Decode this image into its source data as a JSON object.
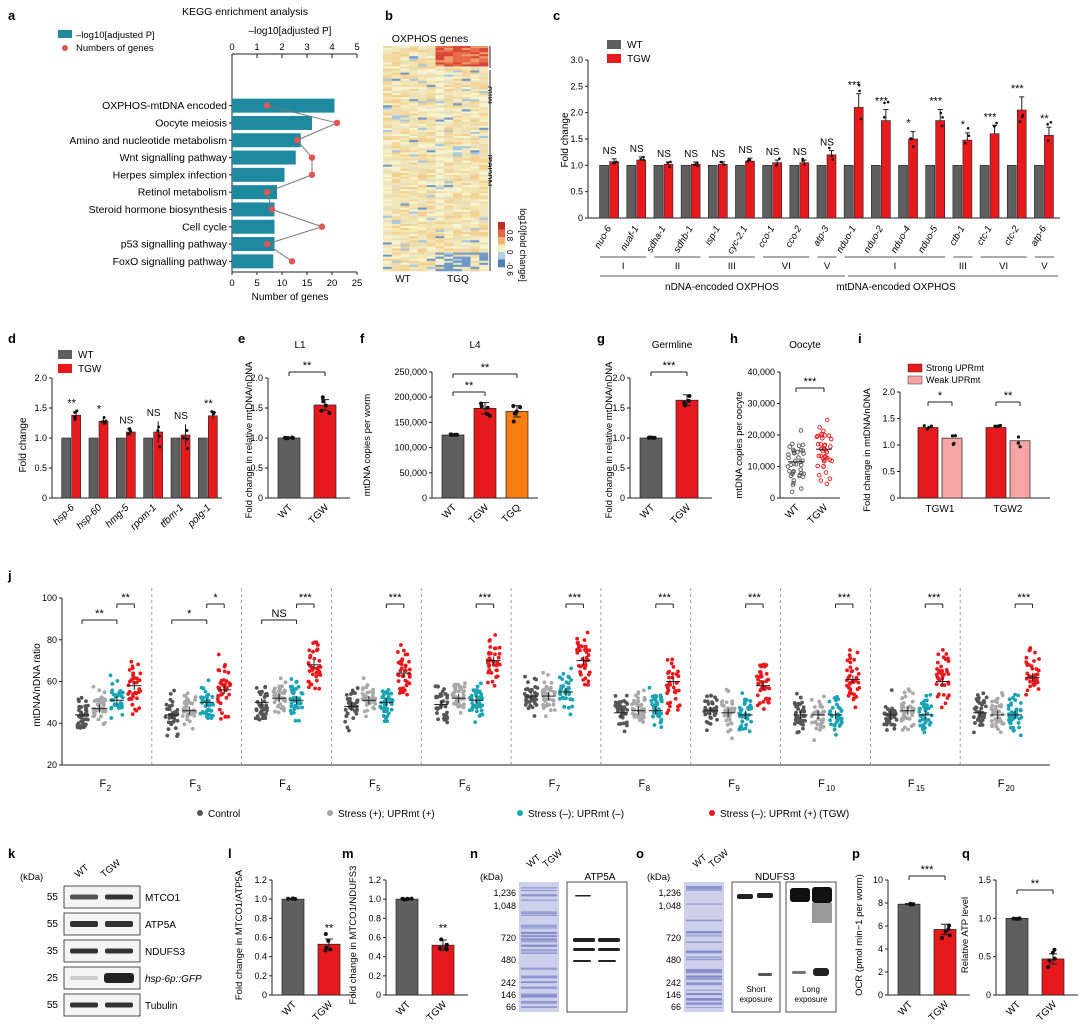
{
  "panels": {
    "a": {
      "letter": "a",
      "title": "KEGG enrichment analysis",
      "top_axis": "–log10[adjusted P]",
      "legend_bar": "–log10[adjusted P]",
      "legend_dot": "Numbers of genes",
      "xlabel": "Number of genes"
    },
    "b": {
      "letter": "b",
      "title": "OXPHOS genes",
      "mito": "Mito",
      "nuclear": "Nuclear",
      "wt": "WT",
      "tgq": "TGQ",
      "colorbar_label": "log10[fold change]",
      "cb_max": "0.8",
      "cb_mid": "0",
      "cb_min": "-0.6"
    },
    "c": {
      "letter": "c",
      "legend_wt": "WT",
      "legend_tgw": "TGW",
      "ylabel": "Fold change",
      "left_group": "nDNA-encoded OXPHOS",
      "right_group": "mtDNA-encoded OXPHOS"
    },
    "d": {
      "letter": "d",
      "legend_wt": "WT",
      "legend_tgw": "TGW",
      "ylabel": "Fold change"
    },
    "e": {
      "letter": "e",
      "title": "L1",
      "ylabel": "Fold change in relative mtDNA/nDNA",
      "sig": "**"
    },
    "f": {
      "letter": "f",
      "title": "L4",
      "ylabel": "mtDNA copies per worm",
      "sig1": "**",
      "sig2": "**"
    },
    "g": {
      "letter": "g",
      "title": "Germline",
      "ylabel": "Fold change in relative mtDNA/nDNA",
      "sig": "***"
    },
    "h": {
      "letter": "h",
      "title": "Oocyte",
      "ylabel": "mtDNA copies per oocyte",
      "sig": "***"
    },
    "i": {
      "letter": "i",
      "legend_strong": "Strong UPRmt",
      "legend_weak": "Weak UPRmt",
      "ylabel": "Fold change in mtDNA/nDNA",
      "sig1": "*",
      "sig2": "**"
    },
    "j": {
      "letter": "j",
      "ylabel": "mtDNA/nDNA ratio",
      "legend": [
        "Control",
        "Stress (+); UPRmt (+)",
        "Stress (–); UPRmt (–)",
        "Stress (–); UPRmt (+) (TGW)"
      ]
    },
    "k": {
      "letter": "k",
      "kda": "(kDa)",
      "lanes": [
        "WT",
        "TGW"
      ],
      "bands": [
        {
          "kda": "55",
          "label": "MTCO1"
        },
        {
          "kda": "55",
          "label": "ATP5A"
        },
        {
          "kda": "35",
          "label": "NDUFS3"
        },
        {
          "kda": "25",
          "label": "hsp-6p::GFP"
        },
        {
          "kda": "55",
          "label": "Tubulin"
        }
      ]
    },
    "l": {
      "letter": "l",
      "ylabel": "Fold change in MTCO1/ATP5A",
      "sig": "**"
    },
    "m": {
      "letter": "m",
      "ylabel": "Fold change in MTCO1/NDUFS3",
      "sig": "**"
    },
    "n": {
      "letter": "n",
      "kda": "(kDa)",
      "lanes": [
        "WT",
        "TGW"
      ],
      "protein": "ATP5A",
      "markers": [
        "1,236",
        "1,048",
        "720",
        "480",
        "242",
        "146",
        "66"
      ]
    },
    "o": {
      "letter": "o",
      "kda": "(kDa)",
      "lanes": [
        "WT",
        "TGW"
      ],
      "protein": "NDUFS3",
      "markers": [
        "1,236",
        "1,048",
        "720",
        "480",
        "242",
        "146",
        "66"
      ],
      "short": "Short exposure",
      "long": "Long exposure"
    },
    "p": {
      "letter": "p",
      "ylabel": "OCR (pmol min−1 per worm)",
      "sig": "***"
    },
    "q": {
      "letter": "q",
      "ylabel": "Relative ATP level",
      "sig": "**"
    }
  },
  "chart_data": [
    {
      "id": "a",
      "type": "bar",
      "title": "KEGG enrichment analysis",
      "categories": [
        "OXPHOS-mtDNA encoded",
        "Oocyte meiosis",
        "Amino and nucleotide metabolism",
        "Wnt signalling pathway",
        "Herpes simplex infection",
        "Retinol metabolism",
        "Steroid hormone biosynthesis",
        "Cell cycle",
        "p53 signalling pathway",
        "FoxO signalling pathway"
      ],
      "values": [
        4.1,
        3.2,
        2.75,
        2.55,
        2.1,
        1.8,
        1.7,
        1.7,
        1.7,
        1.65
      ],
      "genes": [
        7,
        21,
        13,
        16,
        16,
        7,
        8,
        18,
        7,
        12
      ],
      "xlim_top": [
        0,
        5
      ],
      "ticks_top": [
        "0",
        "1",
        "2",
        "3",
        "4",
        "5"
      ],
      "xlim_bottom": [
        0,
        25
      ],
      "ticks_bottom": [
        "0",
        "5",
        "10",
        "15",
        "20",
        "25"
      ]
    },
    {
      "id": "c",
      "type": "bar",
      "ylabel": "Fold change",
      "ylim": [
        0,
        3
      ],
      "yticks": [
        "0",
        "0.5",
        "1.0",
        "1.5",
        "2.0",
        "2.5",
        "3.0"
      ],
      "categories": [
        "nuo-6",
        "nuaf-1",
        "sdha-1",
        "sdhb-1",
        "isp-1",
        "cyc-2.1",
        "cco-1",
        "cco-2",
        "atp-3",
        "nduo-1",
        "nduo-2",
        "nduo-4",
        "nduo-5",
        "ctb-1",
        "ctc-1",
        "ctc-2",
        "atp-6"
      ],
      "series": [
        {
          "name": "WT",
          "values": [
            1,
            1,
            1,
            1,
            1,
            1,
            1,
            1,
            1,
            1,
            1,
            1,
            1,
            1,
            1,
            1,
            1
          ]
        },
        {
          "name": "TGW",
          "values": [
            1.07,
            1.1,
            1.02,
            1.02,
            1.02,
            1.08,
            1.05,
            1.05,
            1.2,
            2.1,
            1.85,
            1.5,
            1.85,
            1.48,
            1.6,
            2.05,
            1.57
          ]
        }
      ],
      "significance": [
        "NS",
        "NS",
        "NS",
        "NS",
        "NS",
        "NS",
        "NS",
        "NS",
        "NS",
        "***",
        "***",
        "*",
        "***",
        "*",
        "***",
        "***",
        "**"
      ],
      "complex_groups": [
        {
          "label": "I",
          "n": 2
        },
        {
          "label": "II",
          "n": 2
        },
        {
          "label": "III",
          "n": 2
        },
        {
          "label": "VI",
          "n": 2
        },
        {
          "label": "V",
          "n": 1
        },
        {
          "label": "I",
          "n": 4
        },
        {
          "label": "III",
          "n": 1
        },
        {
          "label": "VI",
          "n": 2
        },
        {
          "label": "V",
          "n": 1
        }
      ]
    },
    {
      "id": "d",
      "type": "bar",
      "ylabel": "Fold change",
      "ylim": [
        0,
        2
      ],
      "yticks": [
        "0",
        "0.5",
        "1.0",
        "1.5",
        "2.0"
      ],
      "categories": [
        "hsp-6",
        "hsp-60",
        "hmg-5",
        "rpom-1",
        "tfbm-1",
        "polg-1"
      ],
      "series": [
        {
          "name": "WT",
          "values": [
            1,
            1,
            1,
            1,
            1,
            1
          ]
        },
        {
          "name": "TGW",
          "values": [
            1.38,
            1.28,
            1.1,
            1.1,
            1.05,
            1.37
          ]
        }
      ],
      "significance": [
        "**",
        "*",
        "NS",
        "NS",
        "NS",
        "**"
      ]
    },
    {
      "id": "e",
      "type": "bar",
      "title": "L1",
      "categories": [
        "WT",
        "TGW"
      ],
      "values": [
        1.0,
        1.55
      ],
      "ylim": [
        0,
        2
      ],
      "yticks": [
        "0",
        "0.5",
        "1.0",
        "1.5",
        "2.0"
      ]
    },
    {
      "id": "f",
      "type": "bar",
      "title": "L4",
      "categories": [
        "WT",
        "TGW",
        "TGQ"
      ],
      "values": [
        125000,
        178000,
        172000
      ],
      "ylim": [
        0,
        250000
      ],
      "yticks": [
        "0",
        "50,000",
        "100,000",
        "150,000",
        "200,000",
        "250,000"
      ]
    },
    {
      "id": "g",
      "type": "bar",
      "title": "Germline",
      "categories": [
        "WT",
        "TGW"
      ],
      "values": [
        1.0,
        1.63
      ],
      "ylim": [
        0,
        2
      ],
      "yticks": [
        "0",
        "0.5",
        "1.0",
        "1.5",
        "2.0"
      ]
    },
    {
      "id": "h",
      "type": "scatter",
      "title": "Oocyte",
      "categories": [
        "WT",
        "TGW"
      ],
      "values": [
        11500,
        15500
      ],
      "ylim": [
        0,
        40000
      ],
      "yticks": [
        "0",
        "10,000",
        "20,000",
        "30,000",
        "40,000"
      ]
    },
    {
      "id": "i",
      "type": "bar",
      "categories": [
        "TGW1",
        "TGW2"
      ],
      "series": [
        {
          "name": "Strong UPRmt",
          "values": [
            1.33,
            1.33
          ]
        },
        {
          "name": "Weak UPRmt",
          "values": [
            1.13,
            1.08
          ]
        }
      ],
      "ylim": [
        0,
        2
      ],
      "yticks": [
        "0",
        "0.5",
        "1.0",
        "1.5",
        "2.0"
      ]
    },
    {
      "id": "j",
      "type": "scatter",
      "ylabel": "mtDNA/nDNA ratio",
      "ylim": [
        20,
        100
      ],
      "yticks": [
        "20",
        "40",
        "60",
        "80",
        "100"
      ],
      "categories": [
        "F2",
        "F3",
        "F4",
        "F5",
        "F6",
        "F7",
        "F8",
        "F9",
        "F10",
        "F15",
        "F20"
      ],
      "series": [
        {
          "name": "Control",
          "values": [
            44,
            44,
            50,
            48,
            49,
            53,
            45,
            46,
            44,
            44,
            45
          ]
        },
        {
          "name": "Stress (+); UPRmt (+)",
          "values": [
            47,
            46,
            52,
            51,
            52,
            53,
            46,
            45,
            44,
            46,
            44
          ]
        },
        {
          "name": "Stress (–); UPRmt (–)",
          "values": [
            51,
            50,
            51,
            50,
            51,
            55,
            46,
            44,
            44,
            44,
            44
          ]
        },
        {
          "name": "Stress (–); UPRmt (+) (TGW)",
          "values": [
            58,
            56,
            68,
            64,
            70,
            70,
            60,
            58,
            61,
            60,
            62
          ]
        }
      ],
      "significance_left": [
        "**",
        "*",
        "NS",
        "",
        "",
        "",
        "",
        "",
        "",
        "",
        ""
      ],
      "significance_right": [
        "**",
        "*",
        "***",
        "***",
        "***",
        "***",
        "***",
        "***",
        "***",
        "***",
        "***"
      ]
    },
    {
      "id": "l",
      "type": "bar",
      "categories": [
        "WT",
        "TGW"
      ],
      "values": [
        1.0,
        0.53
      ],
      "ylim": [
        0,
        1.2
      ],
      "yticks": [
        "0",
        "0.2",
        "0.4",
        "0.6",
        "0.8",
        "1.0",
        "1.2"
      ]
    },
    {
      "id": "m",
      "type": "bar",
      "categories": [
        "WT",
        "TGW"
      ],
      "values": [
        1.0,
        0.52
      ],
      "ylim": [
        0,
        1.2
      ],
      "yticks": [
        "0",
        "0.2",
        "0.4",
        "0.6",
        "0.8",
        "1.0",
        "1.2"
      ]
    },
    {
      "id": "p",
      "type": "bar",
      "categories": [
        "WT",
        "TGW"
      ],
      "values": [
        7.9,
        5.7
      ],
      "ylim": [
        0,
        10
      ],
      "yticks": [
        "0",
        "2",
        "4",
        "6",
        "8",
        "10"
      ]
    },
    {
      "id": "q",
      "type": "bar",
      "categories": [
        "WT",
        "TGW"
      ],
      "values": [
        1.0,
        0.47
      ],
      "ylim": [
        0,
        1.5
      ],
      "yticks": [
        "0",
        "0.5",
        "1.0",
        "1.5"
      ]
    }
  ]
}
